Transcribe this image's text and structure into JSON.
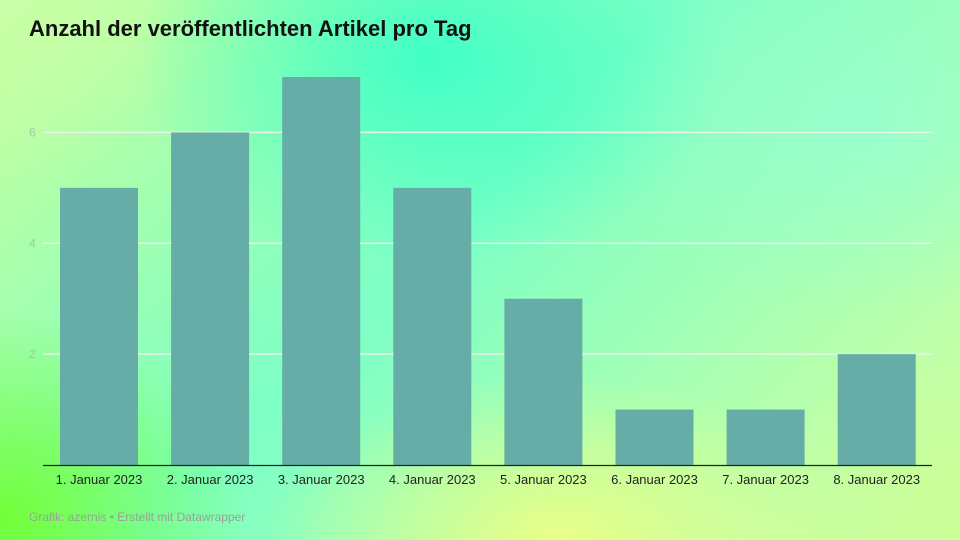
{
  "chart_data": {
    "type": "bar",
    "title": "Anzahl der veröffentlichten Artikel pro Tag",
    "categories": [
      "1. Januar 2023",
      "2. Januar 2023",
      "3. Januar 2023",
      "4. Januar 2023",
      "5. Januar 2023",
      "6. Januar 2023",
      "7. Januar 2023",
      "8. Januar 2023"
    ],
    "values": [
      5,
      6,
      7,
      5,
      3,
      1,
      1,
      2
    ],
    "xlabel": "",
    "ylabel": "",
    "ylim": [
      0,
      7
    ],
    "yticks": [
      "2",
      "4",
      "6"
    ],
    "grid": true,
    "legend": "none"
  },
  "colors": {
    "bar": "#66ada8",
    "grid": "#e8f5ea",
    "axis": "#222222",
    "tick_label": "#a6c4a6"
  },
  "footer": "Grafik: azernis • Erstellt mit Datawrapper"
}
